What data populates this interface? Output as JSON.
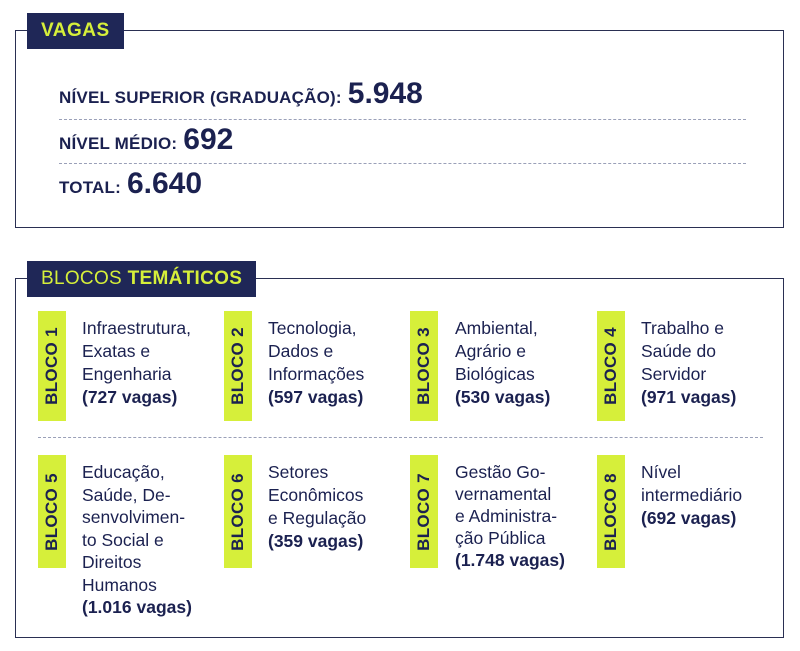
{
  "vagas": {
    "tag": "VAGAS",
    "stats": [
      {
        "label": "NÍVEL SUPERIOR (GRADUAÇÃO):",
        "value": "5.948"
      },
      {
        "label": "NÍVEL MÉDIO:",
        "value": "692"
      },
      {
        "label": "TOTAL:",
        "value": "6.640"
      }
    ]
  },
  "blocos": {
    "tag_regular": "BLOCOS ",
    "tag_bold": "TEMÁTICOS",
    "items": [
      {
        "badge": "BLOCO 1",
        "lines": [
          "Infraestrutura,",
          "Exatas e",
          "Engenharia"
        ],
        "count": "(727 vagas)"
      },
      {
        "badge": "BLOCO 2",
        "lines": [
          "Tecnologia,",
          "Dados e",
          "Informações"
        ],
        "count": "(597 vagas)"
      },
      {
        "badge": "BLOCO 3",
        "lines": [
          "Ambiental,",
          "Agrário e",
          "Biológicas"
        ],
        "count": "(530 vagas)"
      },
      {
        "badge": "BLOCO 4",
        "lines": [
          "Trabalho e",
          "Saúde do",
          "Servidor"
        ],
        "count": "(971 vagas)"
      },
      {
        "badge": "BLOCO 5",
        "lines": [
          "Educação,",
          "Saúde, De-",
          "senvolvimen-",
          "to Social e",
          "Direitos",
          "Humanos"
        ],
        "count": "(1.016 vagas)"
      },
      {
        "badge": "BLOCO 6",
        "lines": [
          "Setores",
          "Econômicos",
          "e Regulação"
        ],
        "count": "(359 vagas)"
      },
      {
        "badge": "BLOCO 7",
        "lines": [
          "Gestão Go-",
          "vernamental",
          "e Administra-",
          "ção Pública"
        ],
        "count": "(1.748 vagas)"
      },
      {
        "badge": "BLOCO 8",
        "lines": [
          "Nível",
          "intermediário"
        ],
        "count": "(692 vagas)"
      }
    ]
  },
  "colors": {
    "navy": "#1f2757",
    "lime": "#d6ef3a",
    "text": "#1b2150"
  }
}
